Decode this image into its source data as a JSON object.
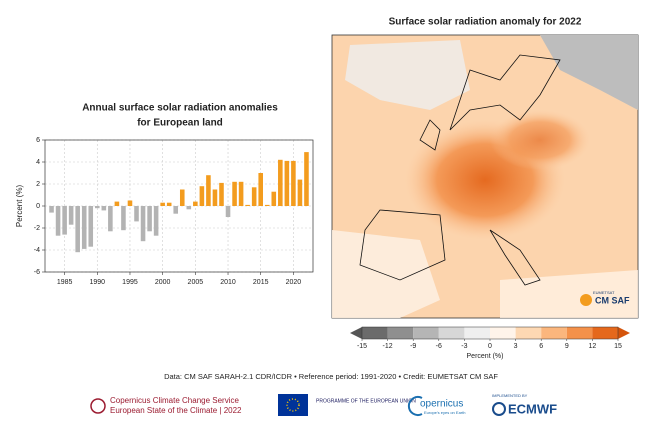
{
  "chart_data": {
    "type": "bar",
    "title": "Annual surface solar radiation anomalies",
    "subtitle": "for European land",
    "y_label": "Percent (%)",
    "x": [
      1983,
      1984,
      1985,
      1986,
      1987,
      1988,
      1989,
      1990,
      1991,
      1992,
      1993,
      1994,
      1995,
      1996,
      1997,
      1998,
      1999,
      2000,
      2001,
      2002,
      2003,
      2004,
      2005,
      2006,
      2007,
      2008,
      2009,
      2010,
      2011,
      2012,
      2013,
      2014,
      2015,
      2016,
      2017,
      2018,
      2019,
      2020,
      2021,
      2022
    ],
    "values": [
      -0.6,
      -2.7,
      -2.6,
      -1.7,
      -4.2,
      -3.9,
      -3.7,
      -0.2,
      -0.4,
      -2.3,
      0.4,
      -2.2,
      0.5,
      -1.4,
      -3.2,
      -2.3,
      -2.7,
      0.3,
      0.3,
      -0.7,
      1.5,
      -0.3,
      0.4,
      1.8,
      2.8,
      1.5,
      2.1,
      -1.0,
      2.2,
      2.2,
      0.1,
      1.7,
      3.0,
      0.1,
      1.3,
      4.2,
      4.1,
      4.1,
      2.4,
      4.9
    ],
    "positive_color": "#f39c1e",
    "negative_color": "#b3b3b3",
    "xlim": [
      1982,
      2023
    ],
    "xticks": [
      1985,
      1990,
      1995,
      2000,
      2005,
      2010,
      2015,
      2020
    ],
    "ylim": [
      -6,
      6
    ],
    "yticks": [
      -6,
      -4,
      -2,
      0,
      2,
      4,
      6
    ],
    "grid": true
  },
  "map": {
    "title": "Surface solar radiation anomaly for 2022",
    "logo_small": "EUMETSAT",
    "logo": "CM SAF",
    "colorbar": {
      "label": "Percent (%)",
      "ticks": [
        -15,
        -12,
        -9,
        -6,
        -3,
        0,
        3,
        6,
        9,
        12,
        15
      ],
      "colors": [
        "#6b6b6b",
        "#8f8f8f",
        "#b5b5b5",
        "#d7d7d7",
        "#efefef",
        "#fff4ea",
        "#fdd8b3",
        "#fbb67d",
        "#f4914a",
        "#e5681c"
      ],
      "under_color": "#555555",
      "over_color": "#d4540c"
    }
  },
  "footer": {
    "credit": "Data: CM SAF SARAH-2.1 CDR/ICDR • Reference period: 1991-2020 • Credit: EUMETSAT CM SAF",
    "c3s_line1": "Copernicus Climate Change Service",
    "c3s_line2": "European State of the Climate | 2022",
    "eu": "PROGRAMME OF THE EUROPEAN UNION",
    "copernicus": "opernicus",
    "copernicus_sub": "Europe's eyes on Earth",
    "implemented": "IMPLEMENTED BY",
    "ecmwf": "ECMWF"
  }
}
